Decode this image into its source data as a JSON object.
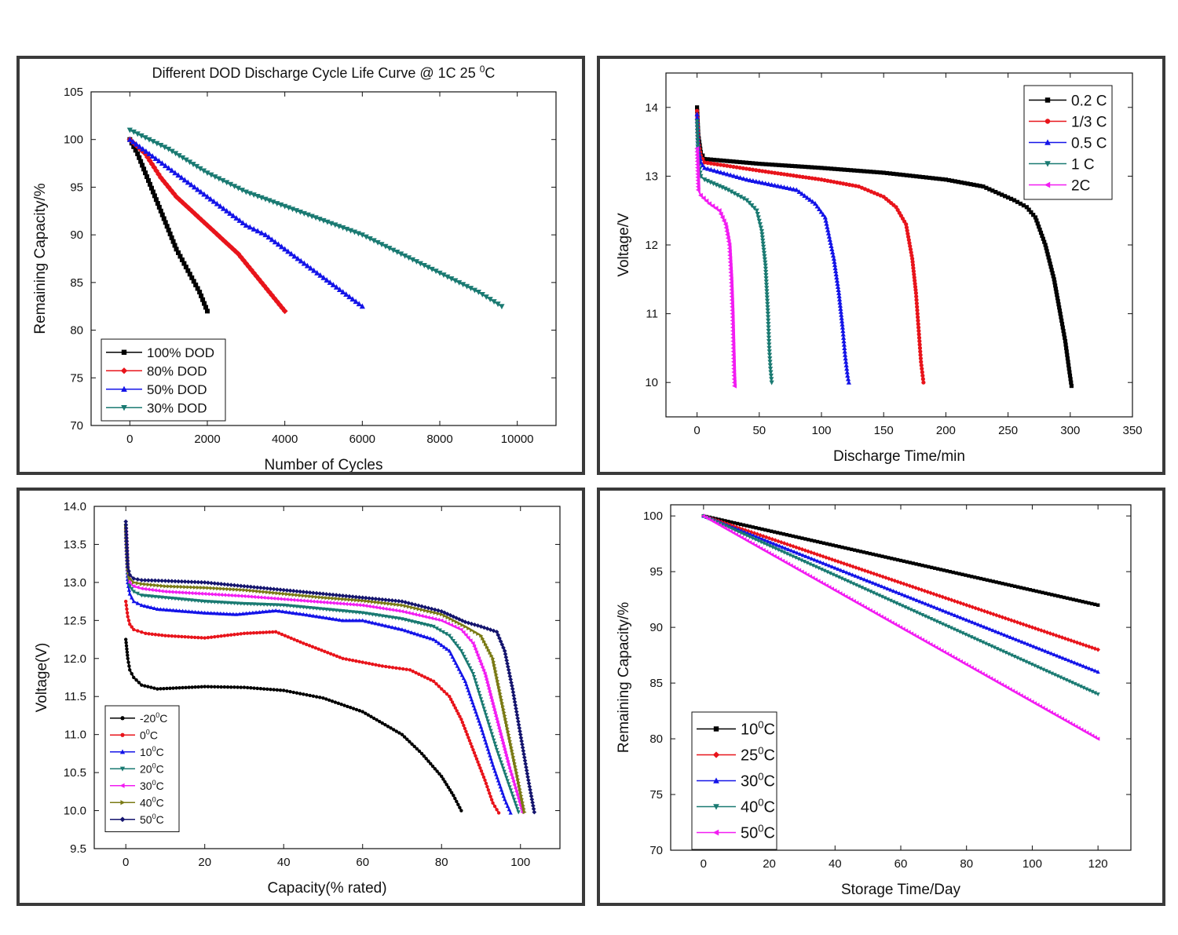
{
  "chart_data": [
    {
      "type": "line",
      "title": "Different DOD Discharge Cycle Life Curve @ 1C 25",
      "title_sup": "0",
      "title_end": "C",
      "xlabel": "Number of Cycles",
      "ylabel": "Remaining Capacity/%",
      "xlim": [
        -1000,
        11000
      ],
      "ylim": [
        70,
        105
      ],
      "xticks": [
        0,
        2000,
        4000,
        6000,
        8000,
        10000
      ],
      "yticks": [
        70,
        75,
        80,
        85,
        90,
        95,
        100,
        105
      ],
      "legend_position": "bottom-left",
      "series": [
        {
          "name": "100% DOD",
          "color": "#000000",
          "marker": "square",
          "x": [
            0,
            200,
            400,
            600,
            800,
            1000,
            1200,
            1400,
            1600,
            1800,
            2000
          ],
          "y": [
            100,
            98.5,
            96.5,
            94.5,
            92.5,
            90.5,
            88.5,
            87,
            85.5,
            84,
            82
          ]
        },
        {
          "name": "80% DOD",
          "color": "#e8141b",
          "marker": "diamond",
          "x": [
            0,
            400,
            800,
            1200,
            1600,
            2000,
            2400,
            2800,
            3200,
            3600,
            4000
          ],
          "y": [
            100,
            98.5,
            96,
            94,
            92.5,
            91,
            89.5,
            88,
            86,
            84,
            82
          ]
        },
        {
          "name": "50% DOD",
          "color": "#1414e8",
          "marker": "triangle-up",
          "x": [
            0,
            500,
            1000,
            1500,
            2000,
            2500,
            3000,
            3500,
            4000,
            4500,
            5000,
            5500,
            6000
          ],
          "y": [
            100,
            98.5,
            97,
            95.5,
            94,
            92.5,
            91,
            90,
            88.5,
            87,
            85.5,
            84,
            82.5
          ]
        },
        {
          "name": "30% DOD",
          "color": "#1a7a72",
          "marker": "triangle-down",
          "x": [
            0,
            1000,
            2000,
            3000,
            4000,
            5000,
            6000,
            7000,
            8000,
            9000,
            9600
          ],
          "y": [
            101,
            99,
            96.5,
            94.5,
            93,
            91.5,
            90,
            88,
            86,
            84,
            82.5
          ]
        }
      ]
    },
    {
      "type": "line",
      "xlabel": "Discharge Time/min",
      "ylabel": "Voltage/V",
      "xlim": [
        -25,
        350
      ],
      "ylim": [
        9.5,
        14.5
      ],
      "xticks": [
        0,
        50,
        100,
        150,
        200,
        250,
        300,
        350
      ],
      "yticks": [
        10,
        11,
        12,
        13,
        14
      ],
      "legend_position": "top-right",
      "series": [
        {
          "name": "0.2 C",
          "color": "#000000",
          "marker": "square",
          "x": [
            0,
            1,
            3,
            6,
            50,
            100,
            150,
            200,
            230,
            255,
            265,
            272,
            280,
            287,
            292,
            296,
            299,
            301
          ],
          "y": [
            14,
            13.6,
            13.35,
            13.25,
            13.18,
            13.12,
            13.05,
            12.95,
            12.85,
            12.65,
            12.55,
            12.4,
            12.0,
            11.5,
            11.0,
            10.6,
            10.2,
            9.95
          ]
        },
        {
          "name": "1/3 C",
          "color": "#e8141b",
          "marker": "circle",
          "x": [
            0,
            1,
            3,
            6,
            50,
            100,
            130,
            150,
            160,
            168,
            173,
            176,
            178,
            180,
            182
          ],
          "y": [
            13.95,
            13.5,
            13.3,
            13.2,
            13.08,
            12.95,
            12.85,
            12.7,
            12.55,
            12.3,
            11.8,
            11.3,
            10.8,
            10.3,
            10.0
          ]
        },
        {
          "name": "0.5 C",
          "color": "#1414e8",
          "marker": "triangle-up",
          "x": [
            0,
            1,
            3,
            6,
            40,
            80,
            95,
            103,
            110,
            114,
            117,
            119,
            121,
            122
          ],
          "y": [
            13.9,
            13.4,
            13.2,
            13.12,
            12.95,
            12.8,
            12.6,
            12.4,
            11.8,
            11.3,
            10.8,
            10.4,
            10.1,
            10.0
          ]
        },
        {
          "name": "1 C",
          "color": "#1a7a72",
          "marker": "triangle-down",
          "x": [
            0,
            1,
            3,
            6,
            25,
            40,
            48,
            52,
            55,
            57,
            58,
            59,
            60
          ],
          "y": [
            13.8,
            13.2,
            13.0,
            12.95,
            12.8,
            12.65,
            12.5,
            12.2,
            11.7,
            11.0,
            10.5,
            10.2,
            10.0
          ]
        },
        {
          "name": "2C",
          "color": "#f21cf2",
          "marker": "triangle-left",
          "x": [
            0,
            1,
            3,
            10,
            18,
            23,
            26,
            27.5,
            28.5,
            29.2,
            29.8,
            30.2
          ],
          "y": [
            13.4,
            12.8,
            12.72,
            12.6,
            12.5,
            12.3,
            12.0,
            11.5,
            11.0,
            10.5,
            10.1,
            9.95
          ]
        }
      ]
    },
    {
      "type": "line",
      "xlabel": "Capacity(% rated)",
      "ylabel": "Voltage(V)",
      "xlim": [
        -8,
        110
      ],
      "ylim": [
        9.5,
        14
      ],
      "xticks": [
        0,
        20,
        40,
        60,
        80,
        100
      ],
      "yticks": [
        9.5,
        10.0,
        10.5,
        11.0,
        11.5,
        12.0,
        12.5,
        13.0,
        13.5,
        14.0
      ],
      "legend_position": "bottom-left",
      "series": [
        {
          "name": "-20",
          "sup": "0",
          "unit": "C",
          "color": "#000000",
          "marker": "circle",
          "x": [
            0,
            0.5,
            1,
            2,
            4,
            8,
            20,
            30,
            40,
            50,
            60,
            65,
            70,
            75,
            80,
            83,
            85
          ],
          "y": [
            12.25,
            12.0,
            11.85,
            11.75,
            11.65,
            11.6,
            11.63,
            11.62,
            11.58,
            11.48,
            11.3,
            11.15,
            11.0,
            10.75,
            10.45,
            10.2,
            10.0
          ]
        },
        {
          "name": "0",
          "sup": "0",
          "unit": "C",
          "color": "#e8141b",
          "marker": "circle",
          "x": [
            0,
            0.5,
            1,
            2,
            5,
            10,
            20,
            30,
            38,
            45,
            55,
            65,
            72,
            78,
            82,
            85,
            88,
            91,
            93,
            94.5
          ],
          "y": [
            12.75,
            12.55,
            12.45,
            12.38,
            12.33,
            12.3,
            12.27,
            12.33,
            12.35,
            12.2,
            12.0,
            11.9,
            11.85,
            11.7,
            11.5,
            11.2,
            10.8,
            10.4,
            10.1,
            9.97
          ]
        },
        {
          "name": "10",
          "sup": "0",
          "unit": "C",
          "color": "#1414e8",
          "marker": "triangle-up",
          "x": [
            0,
            0.5,
            1,
            2,
            4,
            8,
            20,
            28,
            38,
            45,
            55,
            60,
            70,
            78,
            82,
            86,
            90,
            93,
            96,
            97.5
          ],
          "y": [
            13.6,
            13.0,
            12.85,
            12.75,
            12.7,
            12.65,
            12.6,
            12.58,
            12.63,
            12.58,
            12.5,
            12.5,
            12.38,
            12.25,
            12.1,
            11.7,
            11.1,
            10.6,
            10.15,
            9.97
          ]
        },
        {
          "name": "20",
          "sup": "0",
          "unit": "C",
          "color": "#1a7a72",
          "marker": "triangle-down",
          "x": [
            0,
            0.5,
            1,
            2,
            4,
            10,
            20,
            30,
            40,
            50,
            60,
            70,
            78,
            82,
            85,
            88,
            91,
            94,
            97,
            99.5
          ],
          "y": [
            13.65,
            13.1,
            12.95,
            12.88,
            12.83,
            12.8,
            12.75,
            12.72,
            12.7,
            12.65,
            12.6,
            12.52,
            12.42,
            12.3,
            12.1,
            11.8,
            11.3,
            10.8,
            10.35,
            9.98
          ]
        },
        {
          "name": "30",
          "sup": "0",
          "unit": "C",
          "color": "#f21cf2",
          "marker": "triangle-left",
          "x": [
            0,
            0.5,
            1,
            2,
            4,
            10,
            20,
            30,
            40,
            50,
            60,
            70,
            80,
            85,
            88,
            91,
            94,
            97,
            99,
            100.5
          ],
          "y": [
            13.7,
            13.15,
            13.0,
            12.95,
            12.92,
            12.88,
            12.85,
            12.82,
            12.78,
            12.74,
            12.7,
            12.62,
            12.5,
            12.38,
            12.2,
            11.8,
            11.2,
            10.6,
            10.25,
            9.98
          ]
        },
        {
          "name": "40",
          "sup": "0",
          "unit": "C",
          "color": "#7a7a14",
          "marker": "triangle-right",
          "x": [
            0,
            0.5,
            1,
            2,
            4,
            10,
            20,
            30,
            40,
            50,
            60,
            70,
            80,
            86,
            90,
            93,
            95,
            97,
            99,
            101
          ],
          "y": [
            13.75,
            13.18,
            13.05,
            13.0,
            12.98,
            12.95,
            12.93,
            12.9,
            12.85,
            12.8,
            12.76,
            12.7,
            12.58,
            12.42,
            12.3,
            12.0,
            11.5,
            11.0,
            10.5,
            9.98
          ]
        },
        {
          "name": "50",
          "sup": "0",
          "unit": "C",
          "color": "#14146e",
          "marker": "diamond",
          "x": [
            0,
            0.5,
            1,
            2,
            4,
            10,
            20,
            30,
            40,
            50,
            60,
            70,
            80,
            86,
            90,
            94,
            96,
            98,
            100,
            102,
            103.5
          ],
          "y": [
            13.8,
            13.2,
            13.1,
            13.05,
            13.03,
            13.02,
            13.0,
            12.95,
            12.9,
            12.85,
            12.8,
            12.75,
            12.62,
            12.48,
            12.42,
            12.35,
            12.1,
            11.6,
            11.0,
            10.4,
            9.98
          ]
        }
      ]
    },
    {
      "type": "line",
      "xlabel": "Storage Time/Day",
      "ylabel": "Remaining Capacity/%",
      "xlim": [
        -10,
        130
      ],
      "ylim": [
        70,
        101
      ],
      "xticks": [
        0,
        20,
        40,
        60,
        80,
        100,
        120
      ],
      "yticks": [
        70,
        75,
        80,
        85,
        90,
        95,
        100
      ],
      "legend_position": "bottom-left",
      "series": [
        {
          "name": "10",
          "sup": "0",
          "unit": "C",
          "color": "#000000",
          "marker": "square",
          "x": [
            0,
            120
          ],
          "y": [
            100,
            92
          ]
        },
        {
          "name": "25",
          "sup": "0",
          "unit": "C",
          "color": "#e8141b",
          "marker": "diamond",
          "x": [
            0,
            120
          ],
          "y": [
            100,
            88
          ]
        },
        {
          "name": "30",
          "sup": "0",
          "unit": "C",
          "color": "#1414e8",
          "marker": "triangle-up",
          "x": [
            0,
            120
          ],
          "y": [
            100,
            86
          ]
        },
        {
          "name": "40",
          "sup": "0",
          "unit": "C",
          "color": "#1a7a72",
          "marker": "triangle-down",
          "x": [
            0,
            120
          ],
          "y": [
            100,
            84
          ]
        },
        {
          "name": "50",
          "sup": "0",
          "unit": "C",
          "color": "#f21cf2",
          "marker": "triangle-left",
          "x": [
            0,
            120
          ],
          "y": [
            100,
            80
          ]
        }
      ]
    }
  ]
}
